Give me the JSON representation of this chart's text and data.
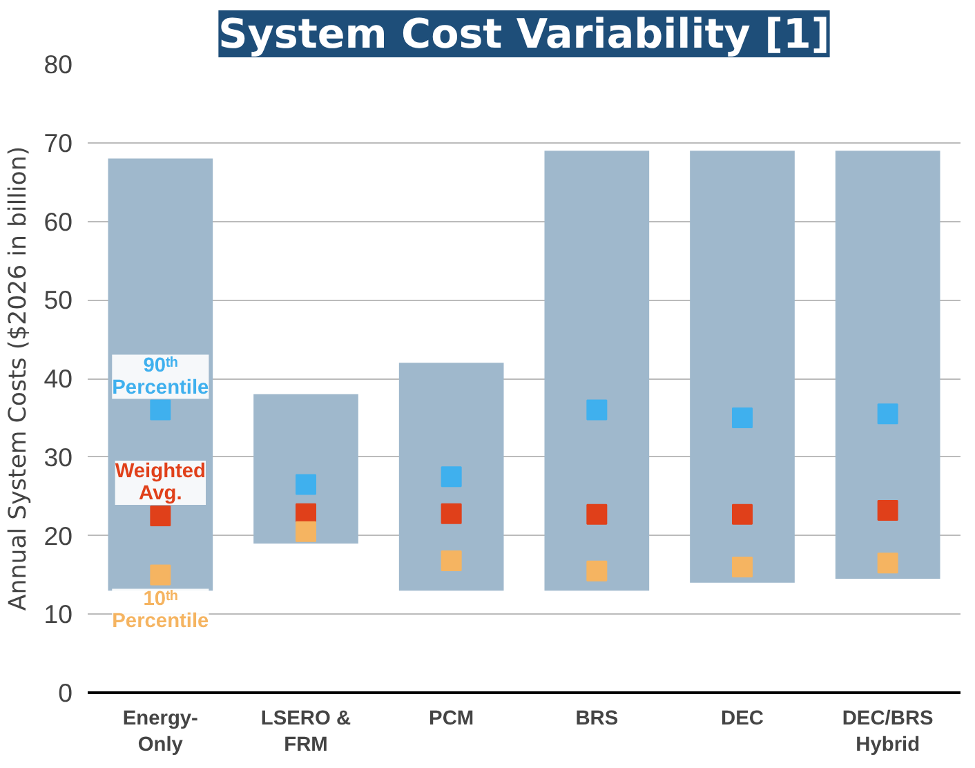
{
  "chart_data": {
    "type": "bar",
    "title": "System Cost Variability [1]",
    "ylabel": "Annual System Costs ($2026 in billion)",
    "categories": [
      "Energy-Only",
      "LSERO & FRM",
      "PCM",
      "BRS",
      "DEC",
      "DEC/BRS Hybrid"
    ],
    "ylim": [
      0,
      80
    ],
    "yticks": [
      0,
      10,
      20,
      30,
      40,
      50,
      60,
      70,
      80
    ],
    "grid": "y",
    "marker": "square",
    "series": [
      {
        "color": "#9fb8cc",
        "base": [
          13,
          19,
          13,
          13,
          14,
          14.5
        ],
        "values": [
          55,
          19,
          29,
          56,
          55,
          54.5
        ]
      },
      {
        "type": "scatter",
        "name": "90ᵗʰ Percentile",
        "color": "#3fb0ee",
        "values": [
          36,
          26.5,
          27.5,
          36,
          35,
          35.5
        ]
      },
      {
        "type": "scatter",
        "name": "Weighted Avg.",
        "color": "#e0401a",
        "values": [
          22.5,
          22.8,
          22.8,
          22.7,
          22.7,
          23.2
        ]
      },
      {
        "type": "scatter",
        "name": "10ᵗʰ Percentile",
        "color": "#f5b461",
        "values": [
          15,
          20.5,
          16.8,
          15.5,
          16,
          16.5
        ]
      }
    ]
  }
}
